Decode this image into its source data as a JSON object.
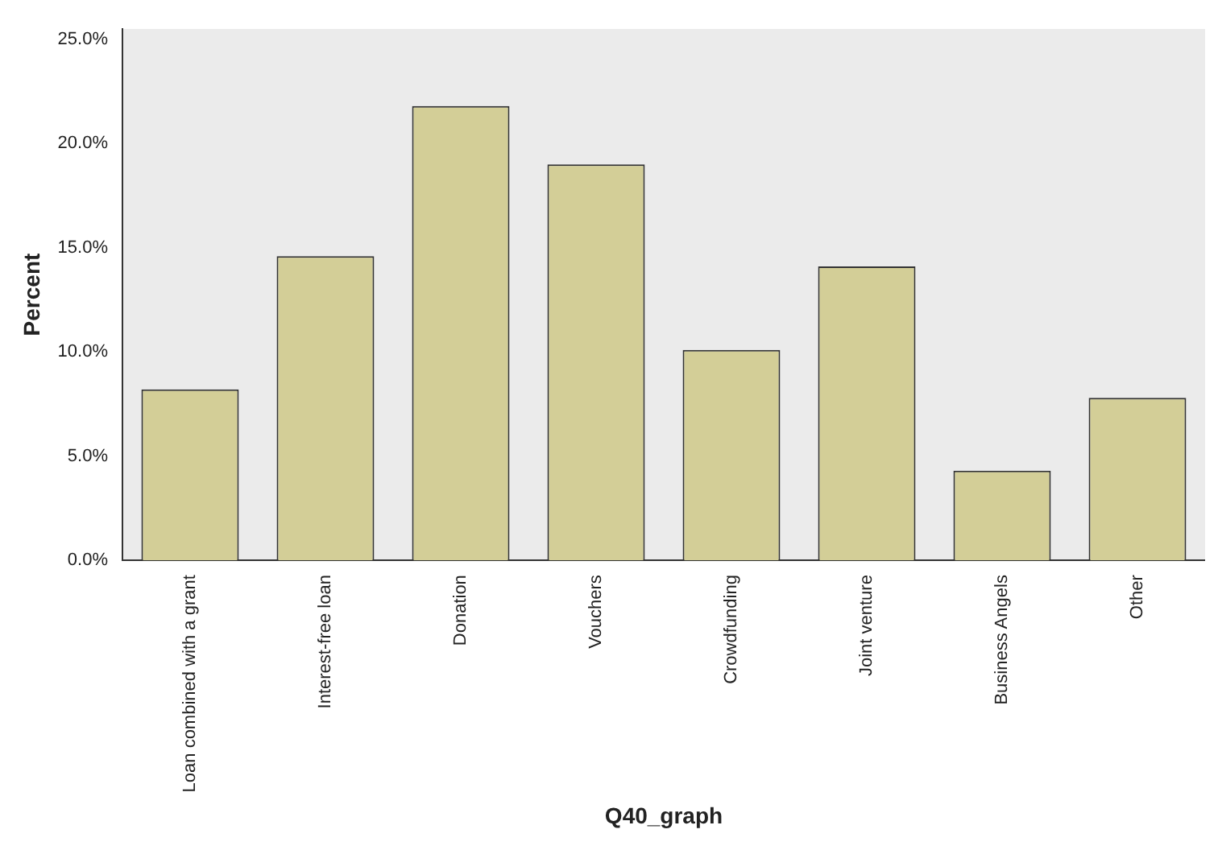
{
  "chart_data": {
    "type": "bar",
    "xlabel": "Q40_graph",
    "ylabel": "Percent",
    "categories": [
      "Loan combined with a grant",
      "Interest-free loan",
      "Donation",
      "Vouchers",
      "Crowdfunding",
      "Joint venture",
      "Business Angels",
      "Other"
    ],
    "values": [
      8.2,
      14.6,
      21.8,
      19.0,
      10.1,
      14.1,
      4.3,
      7.8
    ],
    "color": "#d3ce97",
    "ylim": [
      0,
      25.5
    ],
    "yticks": [
      {
        "value": 0,
        "label": "0.0%"
      },
      {
        "value": 5,
        "label": "5.0%"
      },
      {
        "value": 10,
        "label": "10.0%"
      },
      {
        "value": 15,
        "label": "15.0%"
      },
      {
        "value": 20,
        "label": "20.0%"
      },
      {
        "value": 25,
        "label": "25.0%"
      }
    ],
    "grid": false,
    "legend": false
  }
}
